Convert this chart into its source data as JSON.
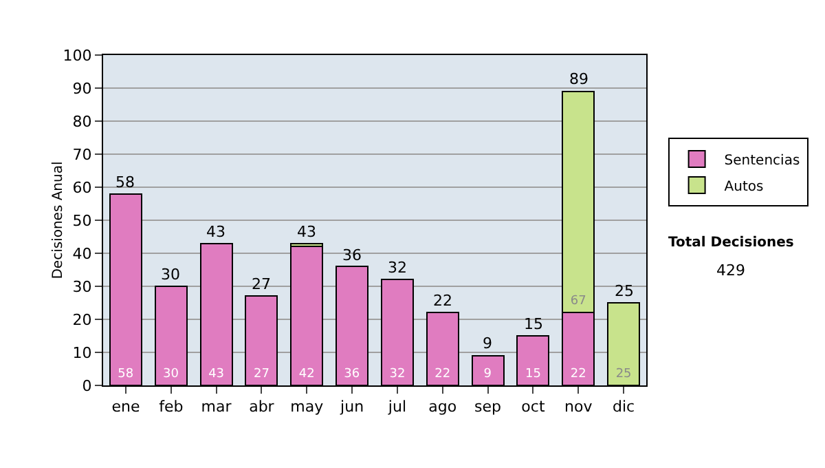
{
  "chart_data": {
    "type": "bar",
    "stacked": true,
    "ylabel": "Decisiones Anual",
    "categories": [
      "ene",
      "feb",
      "mar",
      "abr",
      "may",
      "jun",
      "jul",
      "ago",
      "sep",
      "oct",
      "nov",
      "dic"
    ],
    "series": [
      {
        "name": "Sentencias",
        "color": "#e07cc0",
        "values": [
          58,
          30,
          43,
          27,
          42,
          36,
          32,
          22,
          9,
          15,
          22,
          null
        ],
        "value_labels": [
          "58",
          "30",
          "43",
          "27",
          "42",
          "36",
          "32",
          "22",
          "9",
          "15",
          "22",
          null
        ]
      },
      {
        "name": "Autos",
        "color": "#c8e38c",
        "values": [
          null,
          null,
          null,
          null,
          1,
          null,
          null,
          null,
          null,
          null,
          67,
          25
        ],
        "value_labels": [
          null,
          null,
          null,
          null,
          null,
          null,
          null,
          null,
          null,
          null,
          "67",
          "25"
        ]
      }
    ],
    "totals": [
      "58",
      "30",
      "43",
      "27",
      "43",
      "36",
      "32",
      "22",
      "9",
      "15",
      "89",
      "25"
    ],
    "ylim": [
      0,
      100
    ],
    "yticks": [
      0,
      10,
      20,
      30,
      40,
      50,
      60,
      70,
      80,
      90,
      100
    ],
    "grid": "y",
    "legend": "right",
    "annotations": [
      "Total Decisiones",
      "429"
    ]
  }
}
